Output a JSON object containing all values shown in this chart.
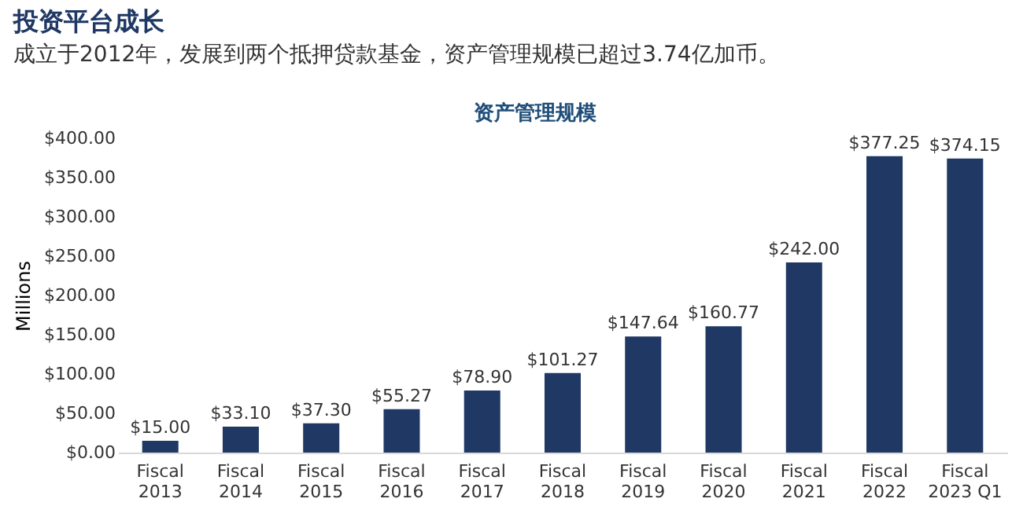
{
  "chart_data": {
    "type": "bar",
    "title": "投资平台成长",
    "subtitle": "成立于2012年，发展到两个抵押贷款基金，资产管理规模已超过3.74亿加币。",
    "annotations": [
      "资产管理规模"
    ],
    "ylabel": "Millions",
    "categories": [
      "Fiscal 2013",
      "Fiscal 2014",
      "Fiscal 2015",
      "Fiscal 2016",
      "Fiscal 2017",
      "Fiscal 2018",
      "Fiscal 2019",
      "Fiscal 2020",
      "Fiscal 2021",
      "Fiscal 2022",
      "Fiscal 2023 Q1"
    ],
    "values": [
      15.0,
      33.1,
      37.3,
      55.27,
      78.9,
      101.27,
      147.64,
      160.77,
      242.0,
      377.25,
      374.15
    ],
    "value_labels": [
      "$15.00",
      "$33.10",
      "$37.30",
      "$55.27",
      "$78.90",
      "$101.27",
      "$147.64",
      "$160.77",
      "$242.00",
      "$377.25",
      "$374.15"
    ],
    "color": "#1f3864",
    "ylim": [
      0,
      400
    ],
    "yticks": [
      {
        "value": 0,
        "label": "$0.00"
      },
      {
        "value": 50,
        "label": "$50.00"
      },
      {
        "value": 100,
        "label": "$100.00"
      },
      {
        "value": 150,
        "label": "$150.00"
      },
      {
        "value": 200,
        "label": "$200.00"
      },
      {
        "value": 250,
        "label": "$250.00"
      },
      {
        "value": 300,
        "label": "$300.00"
      },
      {
        "value": 350,
        "label": "$350.00"
      },
      {
        "value": 400,
        "label": "$400.00"
      }
    ],
    "grid": false
  }
}
